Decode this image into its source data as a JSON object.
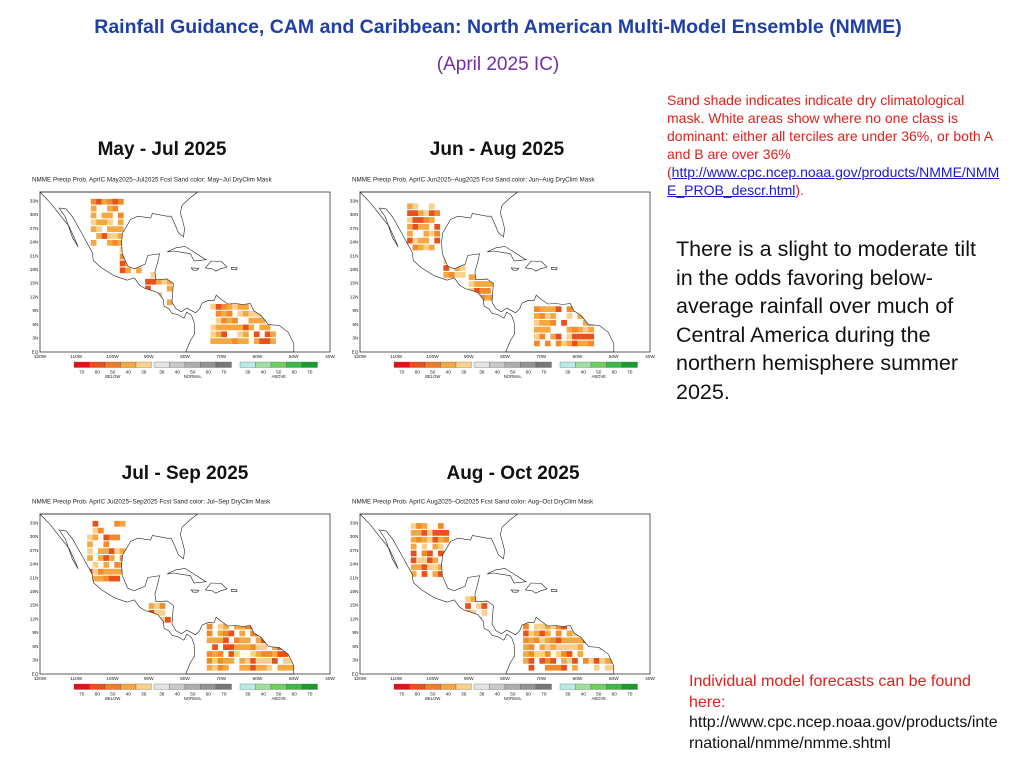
{
  "title": "Rainfall Guidance, CAM and Caribbean:  North American Multi-Model Ensemble (NMME)",
  "subtitle": "(April 2025 IC)",
  "panels": [
    {
      "title": "May - Jul 2025",
      "map_header": "NMME  Precip  Prob.  AprIC   May2025–Jul2025  Fcst    Sand  color:  May–Jul  DryClim  Mask"
    },
    {
      "title": "Jun - Aug 2025",
      "map_header": "NMME  Precip  Prob.  AprIC   Jun2025–Aug2025  Fcst    Sand  color:  Jun–Aug  DryClim  Mask"
    },
    {
      "title": "Jul - Sep 2025",
      "map_header": "NMME  Precip  Prob.  AprIC   Jul2025–Sep2025  Fcst    Sand  color:  Jul–Sep  DryClim  Mask"
    },
    {
      "title": "Aug - Oct 2025",
      "map_header": "NMME  Precip  Prob.  AprIC   Aug2025–Oct2025  Fcst    Sand  color:  Aug–Oct  DryClim  Mask"
    }
  ],
  "map_key": {
    "lat_labels": [
      "33N",
      "30N",
      "27N",
      "24N",
      "21N",
      "18N",
      "15N",
      "12N",
      "9N",
      "6N",
      "3N",
      "EQ"
    ],
    "lon_labels": [
      "120W",
      "110W",
      "100W",
      "90W",
      "80W",
      "70W",
      "60W",
      "50W",
      "40W"
    ],
    "below_levels": [
      70,
      60,
      50,
      40,
      36
    ],
    "normal_levels": [
      36,
      40,
      50,
      60,
      70
    ],
    "above_levels": [
      36,
      40,
      50,
      60,
      70
    ],
    "below": "BELOW",
    "normal": "NORMAL",
    "above": "ABOVE"
  },
  "mask_note": {
    "text_before": "Sand shade indicates indicate dry climatological mask. White areas show where no one class is dominant: either all terciles are under 36%, or both A and B are over 36% (",
    "link": "http://www.cpc.ncep.noaa.gov/products/NMME/NMME_PROB_descr.html",
    "text_after": ")."
  },
  "summary": "There is a slight to moderate tilt in the odds favoring below-average rainfall over much of Central America during the northern hemisphere summer 2025.",
  "models_note": {
    "text": "Individual model forecasts can be found here:",
    "url": "http://www.cpc.ncep.noaa.gov/products/international/nmme/nmme.shtml"
  }
}
